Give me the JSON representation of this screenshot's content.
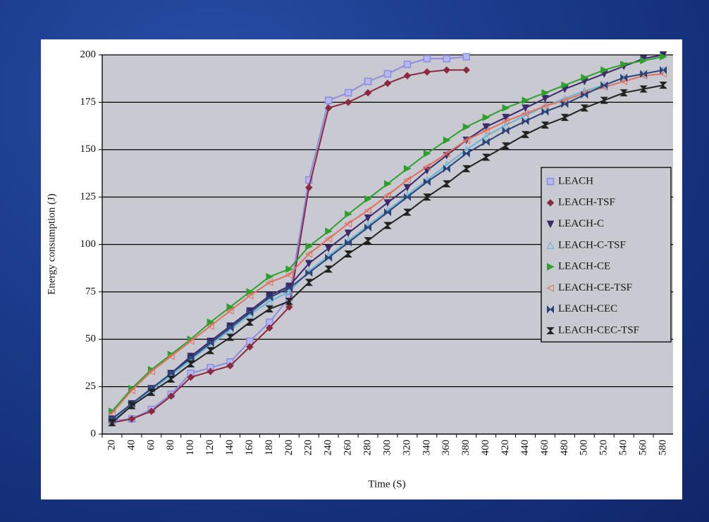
{
  "chart_data": {
    "type": "line",
    "xlabel": "Time (S)",
    "ylabel": "Energy consumption (J)",
    "categories": [
      20,
      40,
      60,
      80,
      100,
      120,
      140,
      160,
      180,
      200,
      220,
      240,
      260,
      280,
      300,
      320,
      340,
      360,
      380,
      400,
      420,
      440,
      460,
      480,
      500,
      520,
      540,
      560,
      580
    ],
    "ylim": [
      0,
      200
    ],
    "yticks": [
      0,
      25,
      50,
      75,
      100,
      125,
      150,
      175,
      200
    ],
    "grid": true,
    "series": [
      {
        "name": "LEACH",
        "color": "#8c8ce0",
        "marker": "square",
        "values": [
          7,
          8,
          13,
          21,
          32,
          35,
          38,
          49,
          59,
          72,
          134,
          176,
          180,
          186,
          190,
          195,
          198,
          198,
          199,
          null,
          null,
          null,
          null,
          null,
          null,
          null,
          null,
          null,
          null
        ]
      },
      {
        "name": "LEACH-TSF",
        "color": "#8a2a40",
        "marker": "diamond",
        "values": [
          6,
          8,
          12,
          20,
          30,
          33,
          36,
          46,
          56,
          67,
          130,
          172,
          175,
          180,
          185,
          189,
          191,
          192,
          192,
          null,
          null,
          null,
          null,
          null,
          null,
          null,
          null,
          null,
          null
        ]
      },
      {
        "name": "LEACH-C",
        "color": "#3a2a6a",
        "marker": "down",
        "values": [
          8,
          16,
          24,
          32,
          41,
          49,
          57,
          65,
          73,
          78,
          90,
          98,
          106,
          114,
          122,
          130,
          139,
          147,
          155,
          162,
          167,
          172,
          177,
          182,
          186,
          190,
          194,
          198,
          200
        ]
      },
      {
        "name": "LEACH-C-TSF",
        "color": "#6ab4d4",
        "marker": "up",
        "values": [
          7,
          15,
          23,
          31,
          39,
          47,
          55,
          63,
          70,
          75,
          86,
          94,
          102,
          110,
          118,
          126,
          134,
          142,
          150,
          157,
          163,
          168,
          173,
          177,
          181,
          184,
          188,
          190,
          192
        ]
      },
      {
        "name": "LEACH-CE",
        "color": "#2ea02e",
        "marker": "right",
        "values": [
          12,
          24,
          34,
          42,
          50,
          59,
          67,
          75,
          83,
          87,
          99,
          107,
          116,
          124,
          132,
          140,
          148,
          155,
          162,
          167,
          172,
          176,
          180,
          184,
          188,
          192,
          195,
          197,
          199
        ]
      },
      {
        "name": "LEACH-CE-TSF",
        "color": "#e07060",
        "marker": "left",
        "values": [
          11,
          23,
          33,
          41,
          49,
          57,
          65,
          73,
          80,
          84,
          95,
          103,
          111,
          118,
          126,
          134,
          141,
          148,
          155,
          160,
          165,
          169,
          173,
          176,
          180,
          183,
          186,
          189,
          190
        ]
      },
      {
        "name": "LEACH-CEC",
        "color": "#2c4478",
        "marker": "bowtie",
        "values": [
          8,
          16,
          24,
          32,
          40,
          48,
          56,
          64,
          72,
          77,
          85,
          93,
          101,
          109,
          117,
          125,
          133,
          140,
          148,
          154,
          160,
          165,
          170,
          174,
          179,
          184,
          188,
          190,
          192
        ]
      },
      {
        "name": "LEACH-CEC-TSF",
        "color": "#222222",
        "marker": "hourglass",
        "values": [
          6,
          15,
          22,
          29,
          37,
          44,
          51,
          59,
          66,
          70,
          80,
          87,
          95,
          102,
          110,
          117,
          125,
          132,
          140,
          146,
          152,
          158,
          163,
          167,
          172,
          176,
          180,
          182,
          184
        ]
      }
    ]
  }
}
